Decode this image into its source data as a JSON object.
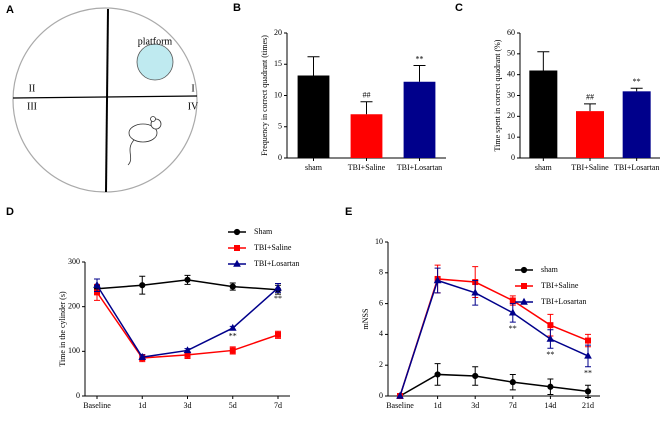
{
  "panel_a": {
    "panel": "A",
    "platform": "platform",
    "quadrants": [
      "I",
      "II",
      "III",
      "IV"
    ]
  },
  "chart_data": [
    {
      "panel": "B",
      "type": "bar",
      "ylabel": "Frequency in correct quadrant (times)",
      "categories": [
        "sham",
        "TBI+Saline",
        "TBI+Losartan"
      ],
      "values": [
        13.2,
        7,
        12.2
      ],
      "errors": [
        3,
        2,
        2.6
      ],
      "colors": [
        "#000000",
        "#ff0000",
        "#00008b"
      ],
      "ylim": [
        0,
        20
      ],
      "yticks": [
        0,
        5,
        10,
        15,
        20
      ],
      "annotations": [
        {
          "text": "##",
          "category": "TBI+Saline"
        },
        {
          "text": "**",
          "category": "TBI+Losartan"
        }
      ]
    },
    {
      "panel": "C",
      "type": "bar",
      "ylabel": "Time spent in correct quadrant (%)",
      "categories": [
        "sham",
        "TBI+Saline",
        "TBI+Losartan"
      ],
      "values": [
        42,
        22.5,
        32
      ],
      "errors": [
        9,
        3.5,
        1.5
      ],
      "colors": [
        "#000000",
        "#ff0000",
        "#00008b"
      ],
      "ylim": [
        0,
        60
      ],
      "yticks": [
        0,
        10,
        20,
        30,
        40,
        50,
        60
      ],
      "annotations": [
        {
          "text": "##",
          "category": "TBI+Saline"
        },
        {
          "text": "**",
          "category": "TBI+Losartan"
        }
      ]
    },
    {
      "panel": "D",
      "type": "line",
      "ylabel": "Time in the cylinder (s)",
      "categories": [
        "Baseline",
        "1d",
        "3d",
        "5d",
        "7d"
      ],
      "ylim": [
        0,
        300
      ],
      "yticks": [
        0,
        100,
        200,
        300
      ],
      "series": [
        {
          "name": "Sham",
          "color": "#000000",
          "marker": "circle",
          "values": [
            240,
            248,
            260,
            245,
            238
          ],
          "errors": [
            8,
            20,
            10,
            8,
            10
          ]
        },
        {
          "name": "TBI+Saline",
          "color": "#ff0000",
          "marker": "square",
          "values": [
            232,
            85,
            92,
            102,
            137
          ],
          "errors": [
            18,
            8,
            8,
            8,
            8
          ]
        },
        {
          "name": "TBI+Losartan",
          "color": "#00008b",
          "marker": "triangle",
          "values": [
            248,
            87,
            102,
            152,
            242
          ],
          "errors": [
            14,
            5,
            4,
            4,
            10
          ]
        }
      ],
      "annotations": [
        {
          "text": "**",
          "category": "5d"
        },
        {
          "text": "**",
          "category": "7d"
        }
      ]
    },
    {
      "panel": "E",
      "type": "line",
      "ylabel": "mNSS",
      "categories": [
        "Baseline",
        "1d",
        "3d",
        "7d",
        "14d",
        "21d"
      ],
      "ylim": [
        0,
        10
      ],
      "yticks": [
        0,
        2,
        4,
        6,
        8,
        10
      ],
      "series": [
        {
          "name": "sham",
          "color": "#000000",
          "marker": "circle",
          "values": [
            0,
            1.4,
            1.3,
            0.9,
            0.6,
            0.3
          ],
          "errors": [
            0,
            0.7,
            0.6,
            0.5,
            0.5,
            0.4
          ]
        },
        {
          "name": "TBI+Saline",
          "color": "#ff0000",
          "marker": "square",
          "values": [
            0,
            7.6,
            7.4,
            6.2,
            4.6,
            3.6
          ],
          "errors": [
            0,
            0.9,
            1,
            0.3,
            0.7,
            0.4
          ]
        },
        {
          "name": "TBI+Losartan",
          "color": "#00008b",
          "marker": "triangle",
          "values": [
            0,
            7.5,
            6.7,
            5.4,
            3.7,
            2.6
          ],
          "errors": [
            0,
            0.8,
            0.8,
            0.6,
            0.6,
            0.7
          ]
        }
      ],
      "annotations": [
        {
          "text": "**",
          "category": "7d"
        },
        {
          "text": "**",
          "category": "14d"
        },
        {
          "text": "**",
          "category": "21d"
        }
      ]
    }
  ]
}
